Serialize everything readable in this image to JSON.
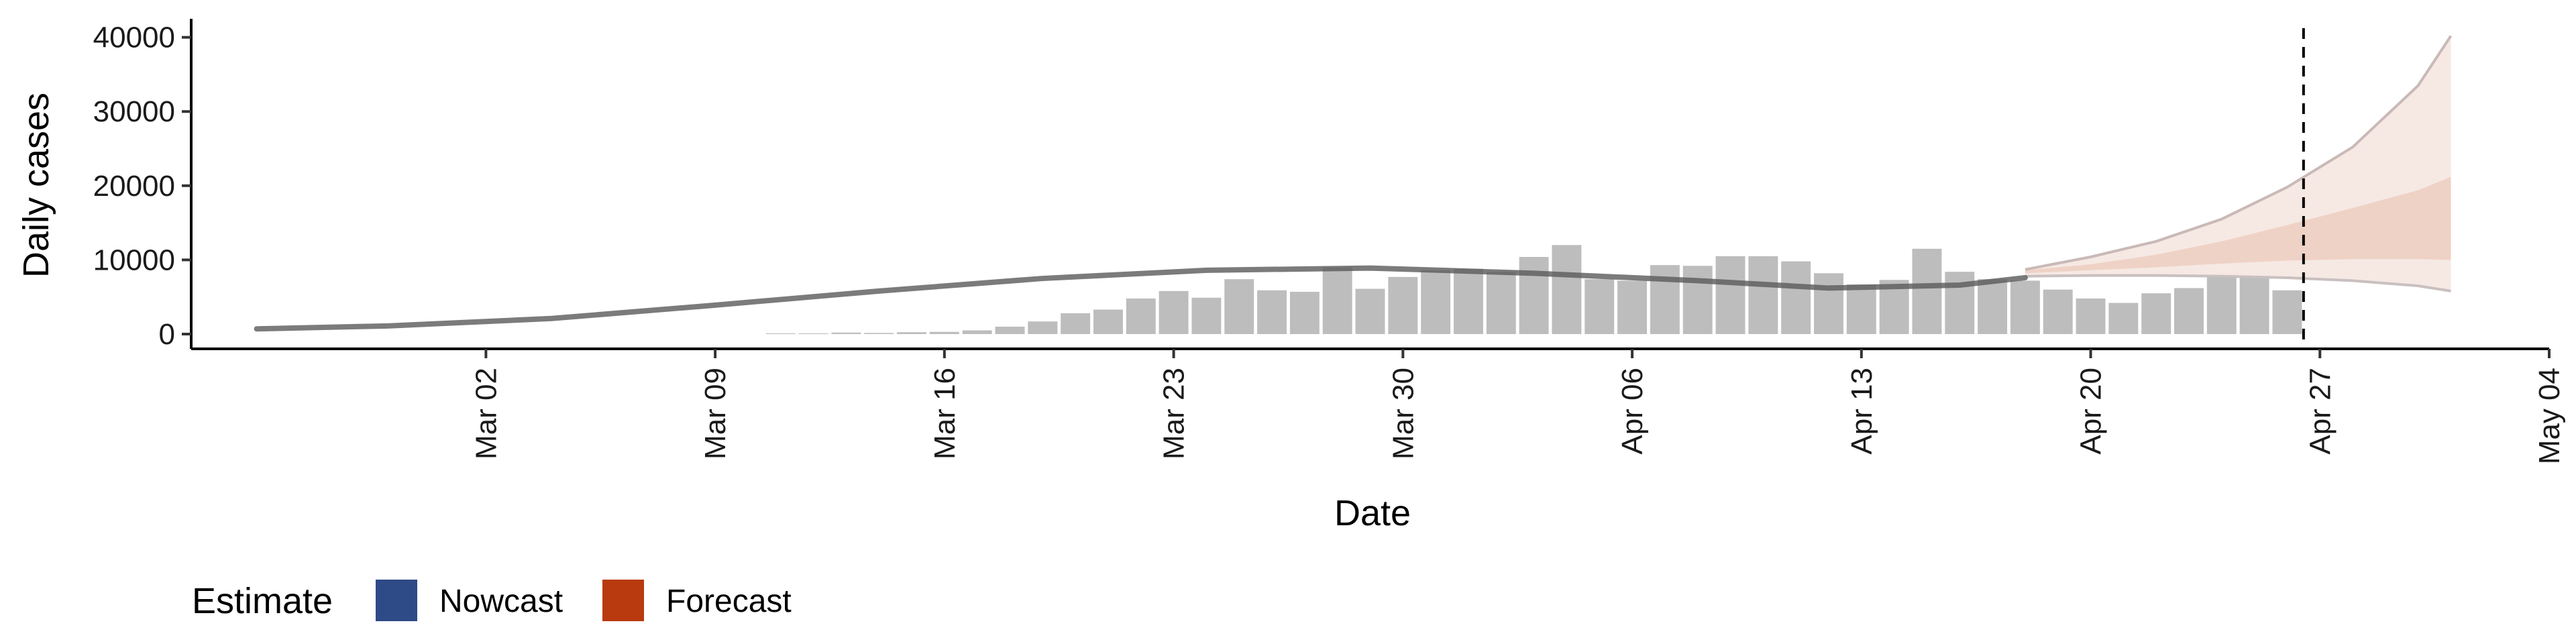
{
  "chart_data": {
    "type": "bar",
    "title": "",
    "xlabel": "Date",
    "ylabel": "Daily cases",
    "ylim": [
      0,
      42500
    ],
    "yticks": [
      0,
      10000,
      20000,
      30000,
      40000
    ],
    "ytick_labels": [
      "0",
      "10000",
      "20000",
      "30000",
      "40000"
    ],
    "xlim": [
      "2020-02-22",
      "2020-05-04"
    ],
    "xticks": [
      "2020-03-02",
      "2020-03-09",
      "2020-03-16",
      "2020-03-23",
      "2020-03-30",
      "2020-04-06",
      "2020-04-13",
      "2020-04-20",
      "2020-04-27",
      "2020-05-04"
    ],
    "xtick_labels": [
      "Mar 02",
      "Mar 09",
      "Mar 16",
      "Mar 23",
      "Mar 30",
      "Apr 06",
      "Apr 13",
      "Apr 20",
      "Apr 27",
      "May 04"
    ],
    "grid": false,
    "legend_position": "bottom-left",
    "reported_cases": {
      "dates": [
        "2020-03-11",
        "2020-03-12",
        "2020-03-13",
        "2020-03-14",
        "2020-03-15",
        "2020-03-16",
        "2020-03-17",
        "2020-03-18",
        "2020-03-19",
        "2020-03-20",
        "2020-03-21",
        "2020-03-22",
        "2020-03-23",
        "2020-03-24",
        "2020-03-25",
        "2020-03-26",
        "2020-03-27",
        "2020-03-28",
        "2020-03-29",
        "2020-03-30",
        "2020-03-31",
        "2020-04-01",
        "2020-04-02",
        "2020-04-03",
        "2020-04-04",
        "2020-04-05",
        "2020-04-06",
        "2020-04-07",
        "2020-04-08",
        "2020-04-09",
        "2020-04-10",
        "2020-04-11",
        "2020-04-12",
        "2020-04-13",
        "2020-04-14",
        "2020-04-15",
        "2020-04-16",
        "2020-04-17",
        "2020-04-18",
        "2020-04-19",
        "2020-04-20",
        "2020-04-21",
        "2020-04-22",
        "2020-04-23",
        "2020-04-24",
        "2020-04-25",
        "2020-04-26"
      ],
      "values": [
        100,
        100,
        200,
        150,
        250,
        300,
        500,
        1000,
        1700,
        2800,
        3300,
        4800,
        5800,
        4900,
        7400,
        5900,
        5700,
        9000,
        6100,
        7700,
        8600,
        8800,
        8400,
        10400,
        12000,
        7400,
        7200,
        9300,
        9200,
        10500,
        10500,
        9800,
        8200,
        6700,
        7300,
        11500,
        8400,
        7400,
        7200,
        6000,
        4800,
        4200,
        5500,
        6200,
        8100,
        10400,
        5900
      ]
    },
    "series": [
      {
        "name": "Nowcast",
        "color": "#2e4a87",
        "dates": [
          "2020-02-24",
          "2020-02-28",
          "2020-03-04",
          "2020-03-09",
          "2020-03-14",
          "2020-03-19",
          "2020-03-24",
          "2020-03-29",
          "2020-04-03",
          "2020-04-08",
          "2020-04-12",
          "2020-04-16",
          "2020-04-18"
        ],
        "median": [
          700,
          1100,
          2100,
          3900,
          5800,
          7500,
          8600,
          8900,
          8200,
          7200,
          6200,
          6600,
          7600
        ]
      },
      {
        "name": "Forecast",
        "color": "#b83a0e",
        "dates": [
          "2020-04-18",
          "2020-04-20",
          "2020-04-22",
          "2020-04-24",
          "2020-04-26",
          "2020-04-28",
          "2020-04-30",
          "2020-05-01"
        ],
        "median": [
          8400,
          9000,
          9700,
          10800,
          12400,
          14600,
          17500,
          19000
        ],
        "lower_90": [
          7800,
          7900,
          7900,
          7800,
          7600,
          7200,
          6500,
          5800
        ],
        "upper_90": [
          8700,
          10400,
          12500,
          15500,
          19800,
          25200,
          33500,
          40200
        ],
        "lower_50": [
          8200,
          8600,
          9000,
          9500,
          9900,
          10100,
          10100,
          10000
        ],
        "upper_50": [
          8600,
          9400,
          10700,
          12500,
          14700,
          17000,
          19400,
          21200
        ]
      }
    ],
    "date_of_estimate": "2020-04-26"
  },
  "legend": {
    "title": "Estimate",
    "items": [
      {
        "label": "Nowcast",
        "color": "#2e4a87"
      },
      {
        "label": "Forecast",
        "color": "#b83a0e"
      }
    ]
  }
}
